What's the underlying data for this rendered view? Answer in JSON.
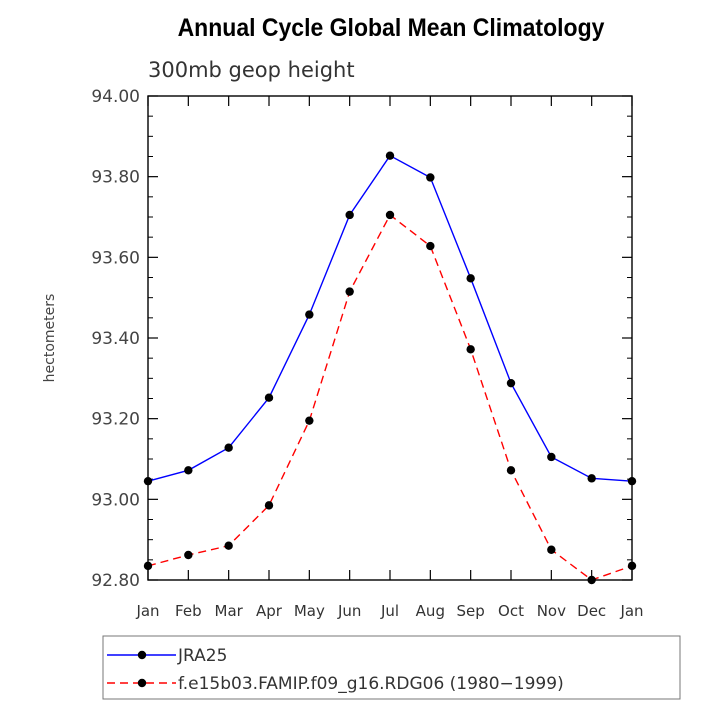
{
  "chart_data": {
    "type": "line",
    "title": "Annual Cycle Global Mean Climatology",
    "subtitle": "300mb geop height",
    "xlabel": "",
    "ylabel": "hectometers",
    "categories": [
      "Jan",
      "Feb",
      "Mar",
      "Apr",
      "May",
      "Jun",
      "Jul",
      "Aug",
      "Sep",
      "Oct",
      "Nov",
      "Dec",
      "Jan"
    ],
    "ylim": [
      92.8,
      94.0
    ],
    "yticks": [
      "92.80",
      "93.00",
      "93.20",
      "93.40",
      "93.60",
      "93.80",
      "94.00"
    ],
    "grid": false,
    "legend_position": "bottom",
    "series": [
      {
        "name": "JRA25",
        "color": "#0000ff",
        "line_style": "solid",
        "marker": "filled-circle",
        "values": [
          93.045,
          93.072,
          93.128,
          93.252,
          93.458,
          93.705,
          93.852,
          93.798,
          93.548,
          93.288,
          93.105,
          93.052,
          93.045
        ]
      },
      {
        "name": "f.e15b03.FAMIP.f09_g16.RDG06 (1980−1999)",
        "color": "#ff0000",
        "line_style": "dashed",
        "marker": "filled-circle",
        "values": [
          92.835,
          92.862,
          92.885,
          92.985,
          93.195,
          93.515,
          93.705,
          93.628,
          93.372,
          93.072,
          92.875,
          92.8,
          92.835
        ]
      }
    ]
  }
}
